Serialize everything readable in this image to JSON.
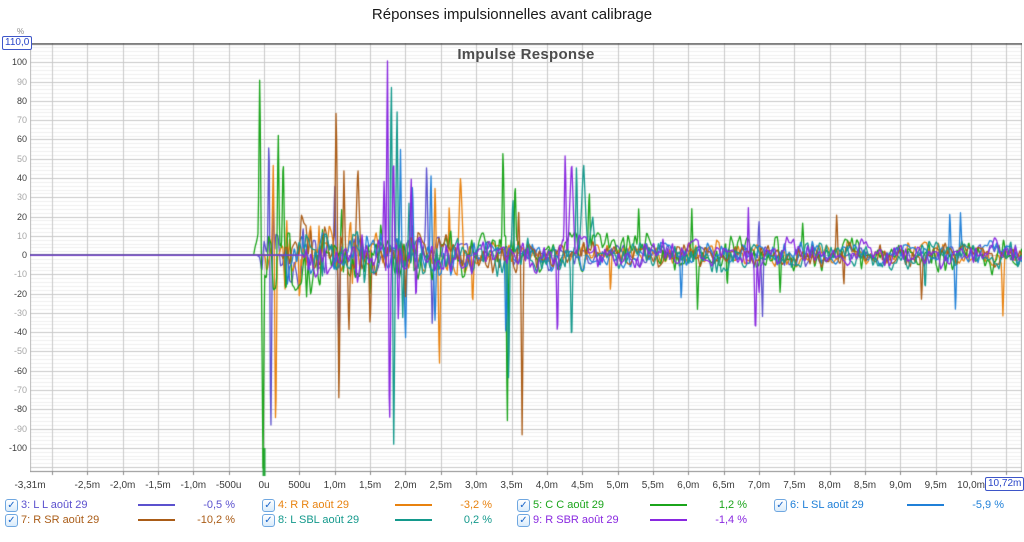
{
  "page": {
    "title": "Réponses impulsionnelles avant calibrage"
  },
  "graph": {
    "title": "Impulse Response",
    "y_unit_label": "%",
    "y_max_field": "110,0",
    "x_max_field": "10,72m"
  },
  "chart_data": {
    "type": "line",
    "title": "Impulse Response",
    "x_unit": "milliseconds",
    "x_range": [
      -3.31,
      10.72
    ],
    "y_range": [
      -112,
      110
    ],
    "grid": {
      "x_major_step_ms": 0.5,
      "y_major_step": 10,
      "y_minor_step": 2,
      "grid_on": true
    },
    "legend_position": "bottom",
    "x_ticks": [
      {
        "t": -3.31,
        "label": "-3,31m"
      },
      {
        "t": -2.5,
        "label": "-2,5m"
      },
      {
        "t": -2.0,
        "label": "-2,0m"
      },
      {
        "t": -1.5,
        "label": "-1,5m"
      },
      {
        "t": -1.0,
        "label": "-1,0m"
      },
      {
        "t": -0.5,
        "label": "-500u"
      },
      {
        "t": 0,
        "label": "0u"
      },
      {
        "t": 0.5,
        "label": "500u"
      },
      {
        "t": 1.0,
        "label": "1,0m"
      },
      {
        "t": 1.5,
        "label": "1,5m"
      },
      {
        "t": 2.0,
        "label": "2,0m"
      },
      {
        "t": 2.5,
        "label": "2,5m"
      },
      {
        "t": 3.0,
        "label": "3,0m"
      },
      {
        "t": 3.5,
        "label": "3,5m"
      },
      {
        "t": 4.0,
        "label": "4,0m"
      },
      {
        "t": 4.5,
        "label": "4,5m"
      },
      {
        "t": 5.0,
        "label": "5,0m"
      },
      {
        "t": 5.5,
        "label": "5,5m"
      },
      {
        "t": 6.0,
        "label": "6,0m"
      },
      {
        "t": 6.5,
        "label": "6,5m"
      },
      {
        "t": 7.0,
        "label": "7,0m"
      },
      {
        "t": 7.5,
        "label": "7,5m"
      },
      {
        "t": 8.0,
        "label": "8,0m"
      },
      {
        "t": 8.5,
        "label": "8,5m"
      },
      {
        "t": 9.0,
        "label": "9,0m"
      },
      {
        "t": 9.5,
        "label": "9,5m"
      },
      {
        "t": 10.0,
        "label": "10,0m"
      },
      {
        "t": 10.5,
        "label": "10,5m"
      }
    ],
    "y_ticks": [
      {
        "v": 100,
        "label": "100"
      },
      {
        "v": 90,
        "label": "90"
      },
      {
        "v": 80,
        "label": "80"
      },
      {
        "v": 70,
        "label": "70"
      },
      {
        "v": 60,
        "label": "60"
      },
      {
        "v": 50,
        "label": "50"
      },
      {
        "v": 40,
        "label": "40"
      },
      {
        "v": 30,
        "label": "30"
      },
      {
        "v": 20,
        "label": "20"
      },
      {
        "v": 10,
        "label": "10"
      },
      {
        "v": 0,
        "label": "0"
      },
      {
        "v": -10,
        "label": "-10"
      },
      {
        "v": -20,
        "label": "-20"
      },
      {
        "v": -30,
        "label": "-30"
      },
      {
        "v": -40,
        "label": "-40"
      },
      {
        "v": -50,
        "label": "-50"
      },
      {
        "v": -60,
        "label": "-60"
      },
      {
        "v": -70,
        "label": "-70"
      },
      {
        "v": -80,
        "label": "-80"
      },
      {
        "v": -90,
        "label": "-90"
      },
      {
        "v": -100,
        "label": "-100"
      }
    ],
    "zero_marker": {
      "t": 0,
      "color": "#23A637"
    },
    "series": [
      {
        "id": "3",
        "label": "3: L L août 29",
        "level": "-0,5 %",
        "color": "#5B51CE",
        "checked": true,
        "row": 0,
        "col": 0,
        "onset": -0.1,
        "noise": {
          "base": 6.5,
          "burst": 16,
          "tau": 1.6,
          "seed": 3
        },
        "spikes": [
          [
            0.07,
            62
          ],
          [
            0.095,
            -96
          ],
          [
            0.13,
            38
          ],
          [
            0.3,
            -28
          ],
          [
            0.55,
            20
          ],
          [
            1.0,
            46
          ],
          [
            1.06,
            -50
          ],
          [
            1.3,
            -25
          ],
          [
            2.3,
            40
          ],
          [
            2.38,
            -40
          ],
          [
            7.0,
            22
          ],
          [
            7.05,
            -32
          ]
        ]
      },
      {
        "id": "4",
        "label": "4: R R août 29",
        "level": "-3,2 %",
        "color": "#E8820F",
        "checked": true,
        "row": 0,
        "col": 1,
        "onset": 0.0,
        "noise": {
          "base": 7,
          "burst": 20,
          "tau": 1.8,
          "seed": 4
        },
        "spikes": [
          [
            0.13,
            54
          ],
          [
            0.165,
            -98
          ],
          [
            0.32,
            34
          ],
          [
            0.5,
            -36
          ],
          [
            0.78,
            28
          ],
          [
            1.25,
            -30
          ],
          [
            2.42,
            44
          ],
          [
            2.48,
            -58
          ],
          [
            2.62,
            36
          ],
          [
            2.78,
            40,
            0.05
          ],
          [
            2.95,
            -28
          ],
          [
            4.9,
            -22
          ],
          [
            10.45,
            -26
          ]
        ]
      },
      {
        "id": "5",
        "label": "5: C C août 29",
        "level": "1,2 %",
        "color": "#1BA51B",
        "checked": true,
        "row": 0,
        "col": 2,
        "onset": -0.15,
        "noise": {
          "base": 11,
          "burst": 16,
          "tau": 2.2,
          "seed": 5
        },
        "spikes": [
          [
            -0.06,
            86
          ],
          [
            -0.015,
            -108
          ],
          [
            0.2,
            71
          ],
          [
            0.27,
            53
          ],
          [
            0.31,
            -33
          ],
          [
            0.6,
            -24
          ],
          [
            1.1,
            25
          ],
          [
            1.5,
            -28
          ],
          [
            2.1,
            22
          ],
          [
            3.38,
            53
          ],
          [
            3.44,
            -100
          ],
          [
            3.55,
            36
          ],
          [
            4.6,
            28
          ],
          [
            5.3,
            24
          ],
          [
            6.05,
            25
          ],
          [
            6.13,
            -25
          ],
          [
            6.55,
            -22
          ],
          [
            7.3,
            -20
          ],
          [
            7.62,
            20
          ]
        ]
      },
      {
        "id": "6",
        "label": "6: L SL août 29",
        "level": "-5,9 %",
        "color": "#2080D8",
        "checked": true,
        "row": 0,
        "col": 3,
        "onset": 0.25,
        "noise": {
          "base": 7,
          "burst": 10,
          "tau": 2.5,
          "seed": 6
        },
        "spikes": [
          [
            1.93,
            58
          ],
          [
            2.0,
            -42
          ],
          [
            2.1,
            38
          ],
          [
            2.36,
            44
          ],
          [
            2.42,
            -30
          ],
          [
            3.42,
            -44
          ],
          [
            5.9,
            -22
          ],
          [
            9.7,
            27
          ],
          [
            9.78,
            -30
          ],
          [
            9.85,
            22
          ]
        ]
      },
      {
        "id": "7",
        "label": "7: R SR août 29",
        "level": "-10,2 %",
        "color": "#AA5C17",
        "checked": true,
        "row": 1,
        "col": 0,
        "onset": 0.25,
        "noise": {
          "base": 7,
          "burst": 18,
          "tau": 1.8,
          "seed": 7
        },
        "spikes": [
          [
            1.02,
            70
          ],
          [
            1.06,
            -94
          ],
          [
            1.13,
            44
          ],
          [
            1.2,
            -38
          ],
          [
            1.33,
            40,
            0.05
          ],
          [
            1.5,
            -34
          ],
          [
            2.0,
            -25
          ],
          [
            3.6,
            28
          ],
          [
            3.65,
            -89
          ],
          [
            8.1,
            24
          ],
          [
            8.2,
            -20
          ],
          [
            9.3,
            -25
          ]
        ]
      },
      {
        "id": "8",
        "label": "8: L SBL août 29",
        "level": "0,2 %",
        "color": "#14998C",
        "checked": true,
        "row": 1,
        "col": 1,
        "onset": 0.45,
        "noise": {
          "base": 7.5,
          "burst": 12,
          "tau": 2.5,
          "seed": 8
        },
        "spikes": [
          [
            1.8,
            99
          ],
          [
            1.835,
            -96
          ],
          [
            1.88,
            73
          ],
          [
            1.96,
            -40
          ],
          [
            2.05,
            30
          ],
          [
            3.46,
            -68
          ],
          [
            3.52,
            28
          ],
          [
            4.35,
            -46
          ],
          [
            4.42,
            50
          ],
          [
            4.52,
            40,
            0.06
          ],
          [
            4.65,
            28,
            0.06
          ],
          [
            9.35,
            -22
          ]
        ]
      },
      {
        "id": "9",
        "label": "9: R SBR août 29",
        "level": "-1,4 %",
        "color": "#8928E0",
        "checked": true,
        "row": 1,
        "col": 2,
        "onset": 0.55,
        "noise": {
          "base": 8,
          "burst": 12,
          "tau": 2.5,
          "seed": 9
        },
        "spikes": [
          [
            1.7,
            44
          ],
          [
            1.745,
            102
          ],
          [
            1.775,
            -91
          ],
          [
            1.83,
            56
          ],
          [
            1.9,
            -42
          ],
          [
            2.08,
            48
          ],
          [
            2.15,
            -30
          ],
          [
            4.15,
            -53
          ],
          [
            4.26,
            50
          ],
          [
            4.35,
            38,
            0.05
          ],
          [
            6.85,
            31
          ],
          [
            6.95,
            -38
          ],
          [
            7.0,
            -20
          ]
        ]
      }
    ]
  }
}
